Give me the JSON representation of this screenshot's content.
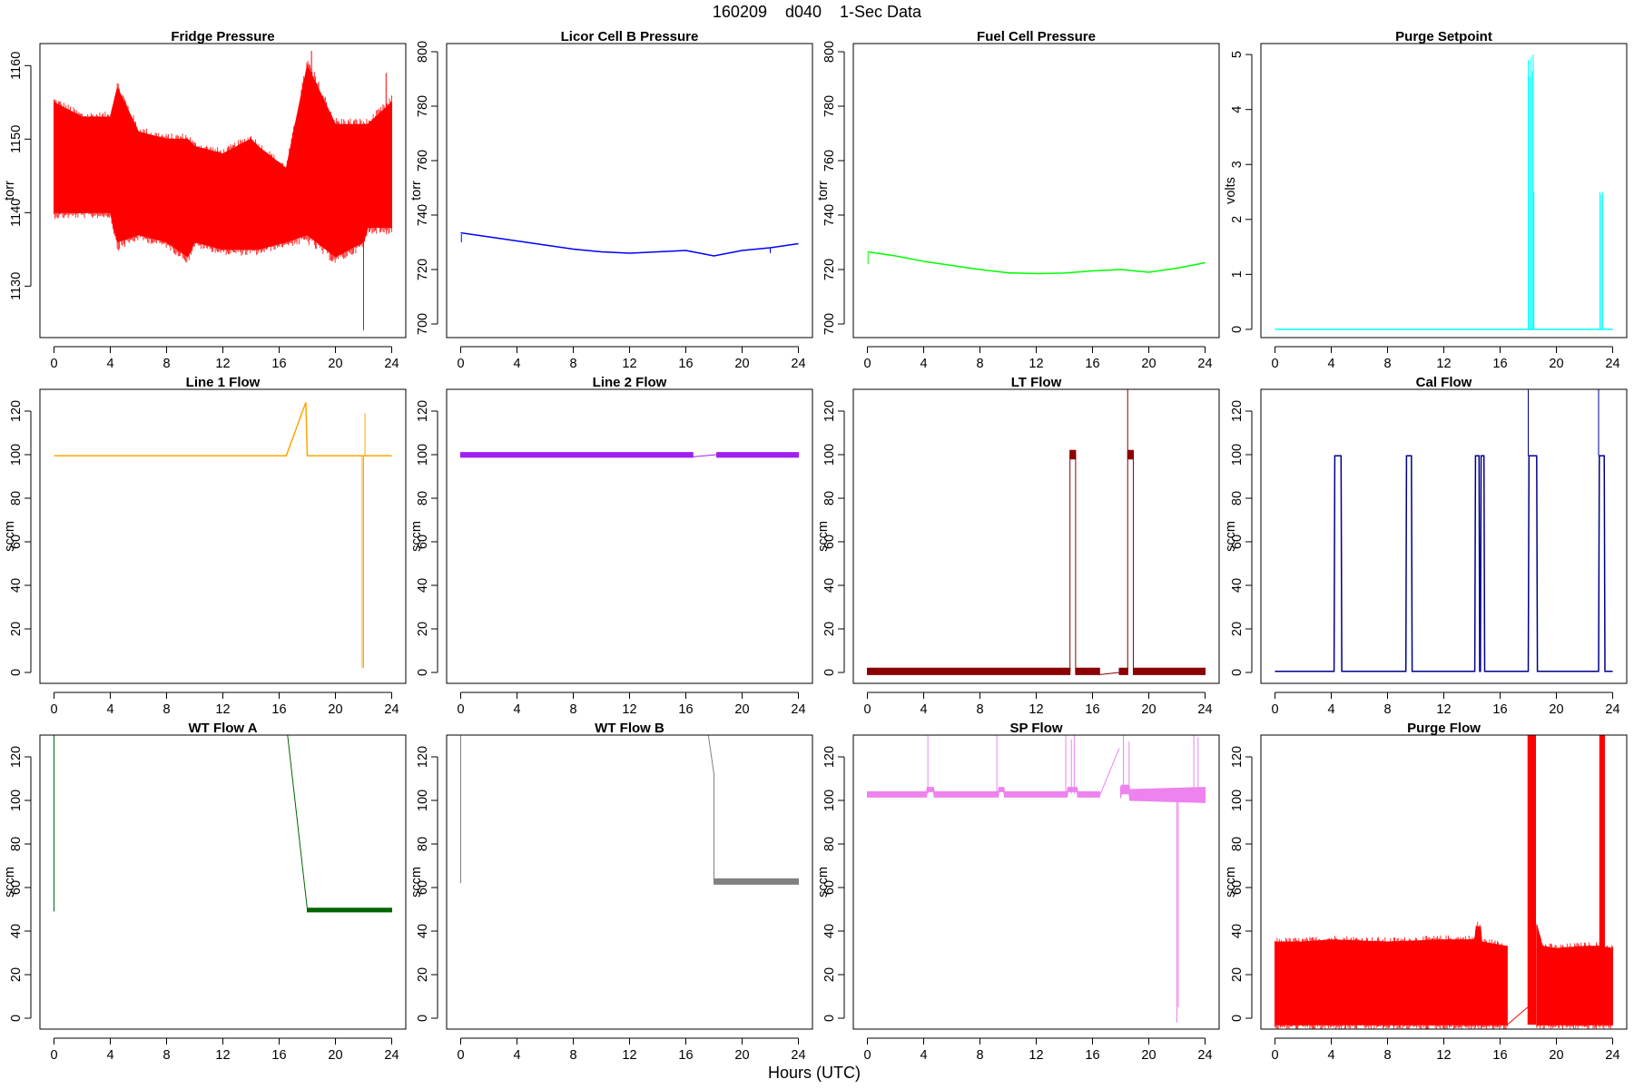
{
  "page": {
    "title": "160209    d040    1-Sec Data",
    "xlabel": "Hours (UTC)"
  },
  "chart_data": [
    {
      "type": "line",
      "title": "Fridge Pressure",
      "ylabel": "torr",
      "color": "#ff0000",
      "xlim": [
        -1,
        25
      ],
      "ylim": [
        1123,
        1163
      ],
      "xticks": [
        0,
        4,
        8,
        12,
        16,
        20,
        24
      ],
      "yticks": [
        1130,
        1140,
        1150,
        1160
      ],
      "band": true,
      "series": [
        {
          "x": [
            0,
            2,
            4,
            4.5,
            6,
            8,
            9.5,
            10,
            12,
            14,
            14.5,
            16.5,
            18,
            20,
            22,
            22.3,
            24
          ],
          "upper": [
            1155,
            1153,
            1153,
            1157,
            1151,
            1150,
            1150,
            1149,
            1148,
            1150,
            1149,
            1146,
            1160,
            1152,
            1152,
            1152,
            1155
          ],
          "lower": [
            1140,
            1140,
            1140,
            1136,
            1137,
            1136,
            1134,
            1136,
            1135,
            1135,
            1135,
            1136,
            1137,
            1134,
            1136,
            1138,
            1138
          ]
        }
      ],
      "connectors": [
        {
          "x": [
            16.5,
            18
          ],
          "y": [
            1142,
            1146
          ]
        }
      ],
      "spikes": [
        {
          "x": 22.0,
          "y0": 1148,
          "y1": 1124
        },
        {
          "x": 18.3,
          "y0": 1148,
          "y1": 1162
        },
        {
          "x": 23.6,
          "y0": 1148,
          "y1": 1159
        }
      ]
    },
    {
      "type": "line",
      "title": "Licor Cell B Pressure",
      "ylabel": "torr",
      "color": "#0000ff",
      "xlim": [
        -1,
        25
      ],
      "ylim": [
        695,
        803
      ],
      "xticks": [
        0,
        4,
        8,
        12,
        16,
        20,
        24
      ],
      "yticks": [
        700,
        720,
        740,
        760,
        780,
        800
      ],
      "band": false,
      "series": [
        {
          "x": [
            0,
            2,
            4,
            6,
            8,
            10,
            12,
            14,
            16,
            16.5,
            18,
            20,
            22,
            24
          ],
          "y": [
            733.5,
            732,
            730.5,
            729,
            727.5,
            726.5,
            726,
            726.5,
            727,
            726.5,
            725,
            727,
            728,
            729.5
          ]
        }
      ],
      "spikes": [
        {
          "x": 22.0,
          "y0": 728,
          "y1": 726
        },
        {
          "x": 0.05,
          "y0": 733,
          "y1": 730
        }
      ]
    },
    {
      "type": "line",
      "title": "Fuel Cell Pressure",
      "ylabel": "torr",
      "color": "#00ff00",
      "xlim": [
        -1,
        25
      ],
      "ylim": [
        695,
        803
      ],
      "xticks": [
        0,
        4,
        8,
        12,
        16,
        20,
        24
      ],
      "yticks": [
        700,
        720,
        740,
        760,
        780,
        800
      ],
      "band": false,
      "series": [
        {
          "x": [
            0,
            2,
            4,
            6,
            8,
            10,
            12,
            14,
            16,
            18,
            20,
            22,
            24
          ],
          "y": [
            726.5,
            725,
            723,
            721.5,
            720,
            718.8,
            718.5,
            718.7,
            719.5,
            720,
            719,
            720.5,
            722.5
          ]
        }
      ],
      "spikes": [
        {
          "x": 0.05,
          "y0": 726,
          "y1": 722
        }
      ]
    },
    {
      "type": "line",
      "title": "Purge Setpoint",
      "ylabel": "volts",
      "color": "#00ffff",
      "xlim": [
        -1,
        25
      ],
      "ylim": [
        -0.15,
        5.2
      ],
      "xticks": [
        0,
        4,
        8,
        12,
        16,
        20,
        24
      ],
      "yticks": [
        0,
        1,
        2,
        3,
        4,
        5
      ],
      "band": false,
      "series": [
        {
          "x": [
            0,
            24
          ],
          "y": [
            0,
            0
          ]
        }
      ],
      "spikes": [
        {
          "x": 18.0,
          "y0": 0,
          "y1": 4.9
        },
        {
          "x": 18.1,
          "y0": 0,
          "y1": 4.6
        },
        {
          "x": 18.2,
          "y0": 0,
          "y1": 4.95
        },
        {
          "x": 18.3,
          "y0": 0,
          "y1": 4.7
        },
        {
          "x": 18.35,
          "y0": 0,
          "y1": 5.0
        },
        {
          "x": 18.4,
          "y0": 0,
          "y1": 2.5
        },
        {
          "x": 23.1,
          "y0": 0,
          "y1": 2.5
        },
        {
          "x": 23.2,
          "y0": 0,
          "y1": 2.45
        },
        {
          "x": 23.3,
          "y0": 0,
          "y1": 2.5
        }
      ]
    },
    {
      "type": "line",
      "title": "Line 1 Flow",
      "ylabel": "sccm",
      "color": "#ffa500",
      "xlim": [
        -1,
        25
      ],
      "ylim": [
        -5,
        130
      ],
      "xticks": [
        0,
        4,
        8,
        12,
        16,
        20,
        24
      ],
      "yticks": [
        0,
        20,
        40,
        60,
        80,
        100,
        120
      ],
      "band": false,
      "series": [
        {
          "x": [
            0,
            16.5,
            17.9,
            18,
            24
          ],
          "y": [
            99.5,
            99.5,
            124,
            99.5,
            99.5
          ]
        }
      ],
      "spikes": [
        {
          "x": 21.9,
          "y0": 99.5,
          "y1": 2
        },
        {
          "x": 22.0,
          "y0": 99.5,
          "y1": 2
        },
        {
          "x": 22.1,
          "y0": 99.5,
          "y1": 119
        }
      ]
    },
    {
      "type": "line",
      "title": "Line 2 Flow",
      "ylabel": "sccm",
      "color": "#a020f0",
      "xlim": [
        -1,
        25
      ],
      "ylim": [
        -5,
        130
      ],
      "xticks": [
        0,
        4,
        8,
        12,
        16,
        20,
        24
      ],
      "yticks": [
        0,
        20,
        40,
        60,
        80,
        100,
        120
      ],
      "band": true,
      "series": [
        {
          "x": [
            0,
            16.5
          ],
          "upper": [
            101,
            101
          ],
          "lower": [
            98.8,
            98.8
          ]
        },
        {
          "x": [
            18.2,
            24
          ],
          "upper": [
            101,
            101
          ],
          "lower": [
            98.8,
            98.8
          ]
        }
      ],
      "connectors": [
        {
          "x": [
            16.5,
            18.2
          ],
          "y": [
            99,
            100
          ]
        }
      ],
      "spikes": []
    },
    {
      "type": "line",
      "title": "LT Flow",
      "ylabel": "sccm",
      "color": "#8b0000",
      "xlim": [
        -1,
        25
      ],
      "ylim": [
        -5,
        130
      ],
      "xticks": [
        0,
        4,
        8,
        12,
        16,
        20,
        24
      ],
      "yticks": [
        0,
        20,
        40,
        60,
        80,
        100,
        120
      ],
      "band": true,
      "series": [
        {
          "x": [
            0,
            14.4
          ],
          "upper": [
            2,
            2
          ],
          "lower": [
            -1,
            -1
          ]
        },
        {
          "x": [
            14.4,
            14.8
          ],
          "upper": [
            102,
            102
          ],
          "lower": [
            98,
            98
          ]
        },
        {
          "x": [
            14.8,
            16.5
          ],
          "upper": [
            2,
            2
          ],
          "lower": [
            -1,
            -1
          ]
        },
        {
          "x": [
            17.9,
            18.5
          ],
          "upper": [
            2,
            2
          ],
          "lower": [
            -1,
            -1
          ]
        },
        {
          "x": [
            18.5,
            18.9
          ],
          "upper": [
            102,
            102
          ],
          "lower": [
            98,
            98
          ]
        },
        {
          "x": [
            18.9,
            24
          ],
          "upper": [
            2,
            2
          ],
          "lower": [
            -1,
            -1
          ]
        }
      ],
      "connectors": [
        {
          "x": [
            16.5,
            17.9
          ],
          "y": [
            -1,
            0
          ]
        }
      ],
      "spikes": [
        {
          "x": 14.4,
          "y0": 0,
          "y1": 100
        },
        {
          "x": 14.8,
          "y0": 0,
          "y1": 100
        },
        {
          "x": 18.5,
          "y0": 0,
          "y1": 130
        },
        {
          "x": 18.9,
          "y0": 0,
          "y1": 100
        }
      ]
    },
    {
      "type": "line",
      "title": "Cal Flow",
      "ylabel": "sccm",
      "color": "#00008b",
      "xlim": [
        -1,
        25
      ],
      "ylim": [
        -5,
        130
      ],
      "xticks": [
        0,
        4,
        8,
        12,
        16,
        20,
        24
      ],
      "yticks": [
        0,
        20,
        40,
        60,
        80,
        100,
        120
      ],
      "band": false,
      "series": [
        {
          "x": [
            0,
            4.2,
            4.25,
            4.7,
            4.75,
            9.3,
            9.35,
            9.7,
            9.75,
            14.2,
            14.25,
            14.5,
            14.55,
            14.6,
            14.65,
            14.85,
            14.9,
            16.5,
            18.0,
            18.05,
            18.6,
            18.65,
            23.0,
            23.05,
            23.4,
            23.45,
            24
          ],
          "y": [
            0.5,
            0.5,
            99.5,
            99.5,
            0.5,
            0.5,
            99.5,
            99.5,
            0.5,
            0.5,
            99.5,
            99.5,
            0.5,
            0.5,
            99.5,
            99.5,
            0.5,
            0.5,
            0.5,
            99.5,
            99.5,
            0.5,
            0.5,
            99.5,
            99.5,
            0.5,
            0.5
          ]
        }
      ],
      "spikes": [
        {
          "x": 18.0,
          "y0": 99.5,
          "y1": 130
        },
        {
          "x": 23.0,
          "y0": 99.5,
          "y1": 130
        }
      ]
    },
    {
      "type": "line",
      "title": "WT Flow A",
      "ylabel": "sccm",
      "color": "#006400",
      "xlim": [
        -1,
        25
      ],
      "ylim": [
        -5,
        130
      ],
      "xticks": [
        0,
        4,
        8,
        12,
        16,
        20,
        24
      ],
      "yticks": [
        0,
        20,
        40,
        60,
        80,
        100,
        120
      ],
      "band": true,
      "series": [
        {
          "x": [
            18,
            24
          ],
          "upper": [
            50.5,
            50.5
          ],
          "lower": [
            48.8,
            48.8
          ]
        }
      ],
      "connectors": [
        {
          "x": [
            16.6,
            18
          ],
          "y": [
            130,
            50
          ]
        }
      ],
      "spikes": [
        {
          "x": 0.0,
          "y0": 49,
          "y1": 130
        }
      ]
    },
    {
      "type": "line",
      "title": "WT Flow B",
      "ylabel": "sccm",
      "color": "#808080",
      "xlim": [
        -1,
        25
      ],
      "ylim": [
        -5,
        130
      ],
      "xticks": [
        0,
        4,
        8,
        12,
        16,
        20,
        24
      ],
      "yticks": [
        0,
        20,
        40,
        60,
        80,
        100,
        120
      ],
      "band": true,
      "series": [
        {
          "x": [
            18,
            24
          ],
          "upper": [
            64,
            64
          ],
          "lower": [
            61.5,
            61.5
          ]
        }
      ],
      "connectors": [
        {
          "x": [
            17.6,
            18,
            18
          ],
          "y": [
            130,
            112,
            63
          ]
        }
      ],
      "spikes": [
        {
          "x": 0.0,
          "y0": 62,
          "y1": 130
        }
      ]
    },
    {
      "type": "line",
      "title": "SP Flow",
      "ylabel": "sccm",
      "color": "#ee82ee",
      "xlim": [
        -1,
        25
      ],
      "ylim": [
        -5,
        130
      ],
      "xticks": [
        0,
        4,
        8,
        12,
        16,
        20,
        24
      ],
      "yticks": [
        0,
        20,
        40,
        60,
        80,
        100,
        120
      ],
      "band": true,
      "series": [
        {
          "x": [
            0,
            4.2,
            4.25,
            4.7,
            4.75,
            9.3,
            9.35,
            9.7,
            9.75,
            14.2,
            14.25,
            14.9,
            14.95,
            16.5
          ],
          "upper": [
            104,
            104,
            106,
            106,
            104,
            104,
            106,
            106,
            104,
            104,
            106,
            106,
            104,
            104
          ],
          "lower": [
            101.5,
            101.5,
            104,
            104,
            101.5,
            101.5,
            104,
            104,
            101.5,
            101.5,
            104,
            104,
            101.5,
            101.5
          ]
        },
        {
          "x": [
            18,
            18.05,
            18.6,
            18.65,
            24
          ],
          "upper": [
            106,
            107,
            107,
            105,
            106
          ],
          "lower": [
            101,
            103,
            103,
            100,
            99
          ]
        }
      ],
      "connectors": [
        {
          "x": [
            16.5,
            17.9
          ],
          "y": [
            102,
            124
          ]
        }
      ],
      "spikes": [
        {
          "x": 4.3,
          "y0": 103,
          "y1": 130
        },
        {
          "x": 9.2,
          "y0": 103,
          "y1": 130
        },
        {
          "x": 14.1,
          "y0": 103,
          "y1": 130
        },
        {
          "x": 14.5,
          "y0": 103,
          "y1": 128
        },
        {
          "x": 14.7,
          "y0": 103,
          "y1": 130
        },
        {
          "x": 18.2,
          "y0": 103,
          "y1": 130
        },
        {
          "x": 18.6,
          "y0": 103,
          "y1": 127
        },
        {
          "x": 22.0,
          "y0": 103,
          "y1": -2
        },
        {
          "x": 22.1,
          "y0": 103,
          "y1": 5
        },
        {
          "x": 23.2,
          "y0": 103,
          "y1": 130
        },
        {
          "x": 23.5,
          "y0": 103,
          "y1": 129
        }
      ]
    },
    {
      "type": "line",
      "title": "Purge Flow",
      "ylabel": "sccm",
      "color": "#ff0000",
      "xlim": [
        -1,
        25
      ],
      "ylim": [
        -5,
        130
      ],
      "xticks": [
        0,
        4,
        8,
        12,
        16,
        20,
        24
      ],
      "yticks": [
        0,
        20,
        40,
        60,
        80,
        100,
        120
      ],
      "band": true,
      "series": [
        {
          "x": [
            0,
            2,
            4,
            8,
            12,
            14.2,
            14.3,
            14.6,
            14.7,
            16.5
          ],
          "upper": [
            35,
            35,
            36,
            35,
            36,
            36,
            42,
            42,
            35,
            33
          ],
          "lower": [
            -3,
            -3,
            -3,
            -3,
            -3,
            -3,
            -3,
            -3,
            -3,
            -3
          ]
        },
        {
          "x": [
            18.6,
            19,
            20,
            22,
            23,
            24
          ],
          "upper": [
            43,
            33,
            32,
            33,
            33,
            32
          ],
          "lower": [
            -3,
            -3,
            -3,
            -3,
            -3,
            -3
          ]
        }
      ],
      "blocks": [
        {
          "x0": 17.95,
          "x1": 18.55,
          "y0": -3,
          "y1": 130
        },
        {
          "x0": 23.05,
          "x1": 23.45,
          "y0": -3,
          "y1": 130
        }
      ],
      "connectors": [
        {
          "x": [
            16.5,
            17.95
          ],
          "y": [
            -3,
            5
          ]
        }
      ],
      "spikes": []
    }
  ]
}
